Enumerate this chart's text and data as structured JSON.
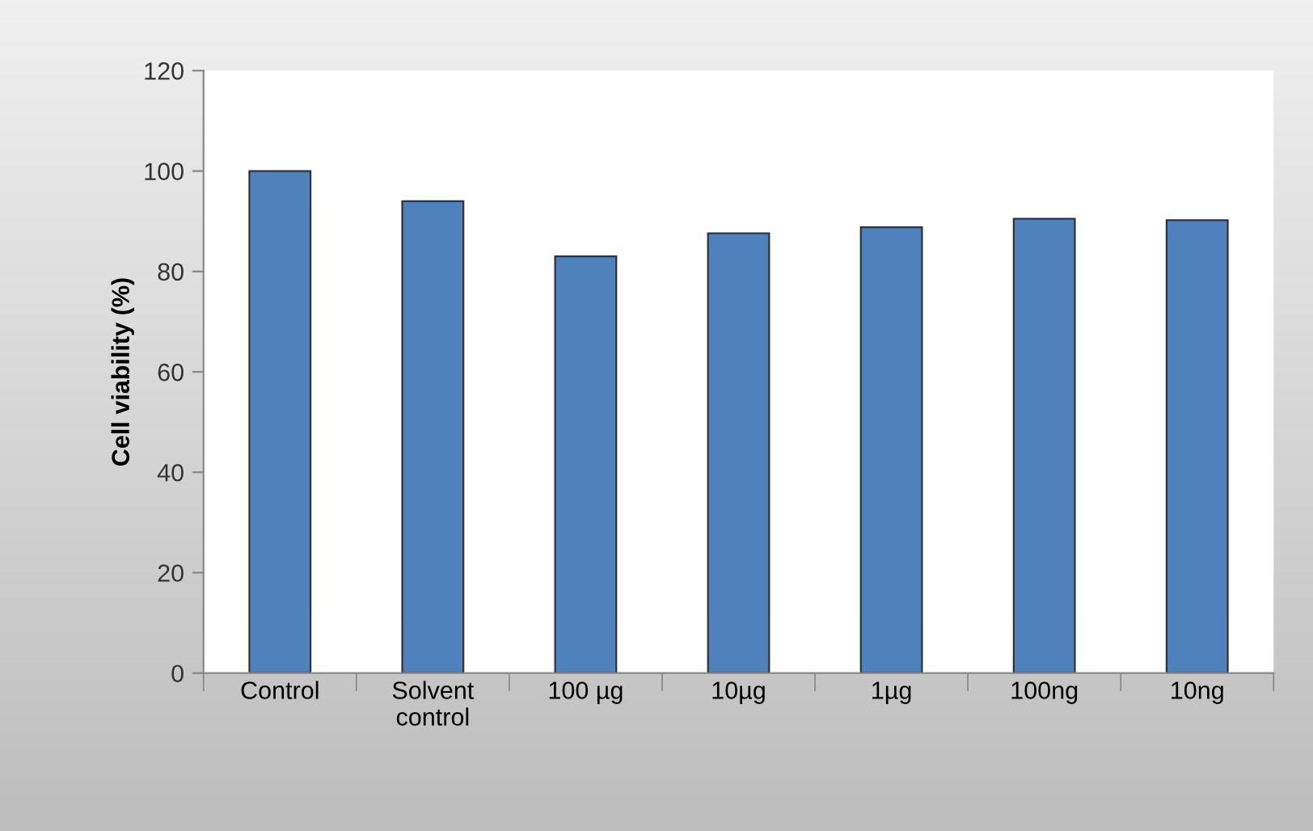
{
  "chart_data": {
    "type": "bar",
    "ylabel": "Cell viability (%)",
    "categories": [
      "Control",
      "Solvent\ncontrol",
      "100 µg",
      "10µg",
      "1µg",
      "100ng",
      "10ng"
    ],
    "values": [
      100,
      94,
      83,
      87.6,
      88.8,
      90.5,
      90.2
    ],
    "color": "#4f81bd",
    "ylim": [
      0,
      120
    ],
    "yticks": [
      0,
      20,
      40,
      60,
      80,
      100,
      120
    ],
    "grid": false,
    "legend": false
  }
}
